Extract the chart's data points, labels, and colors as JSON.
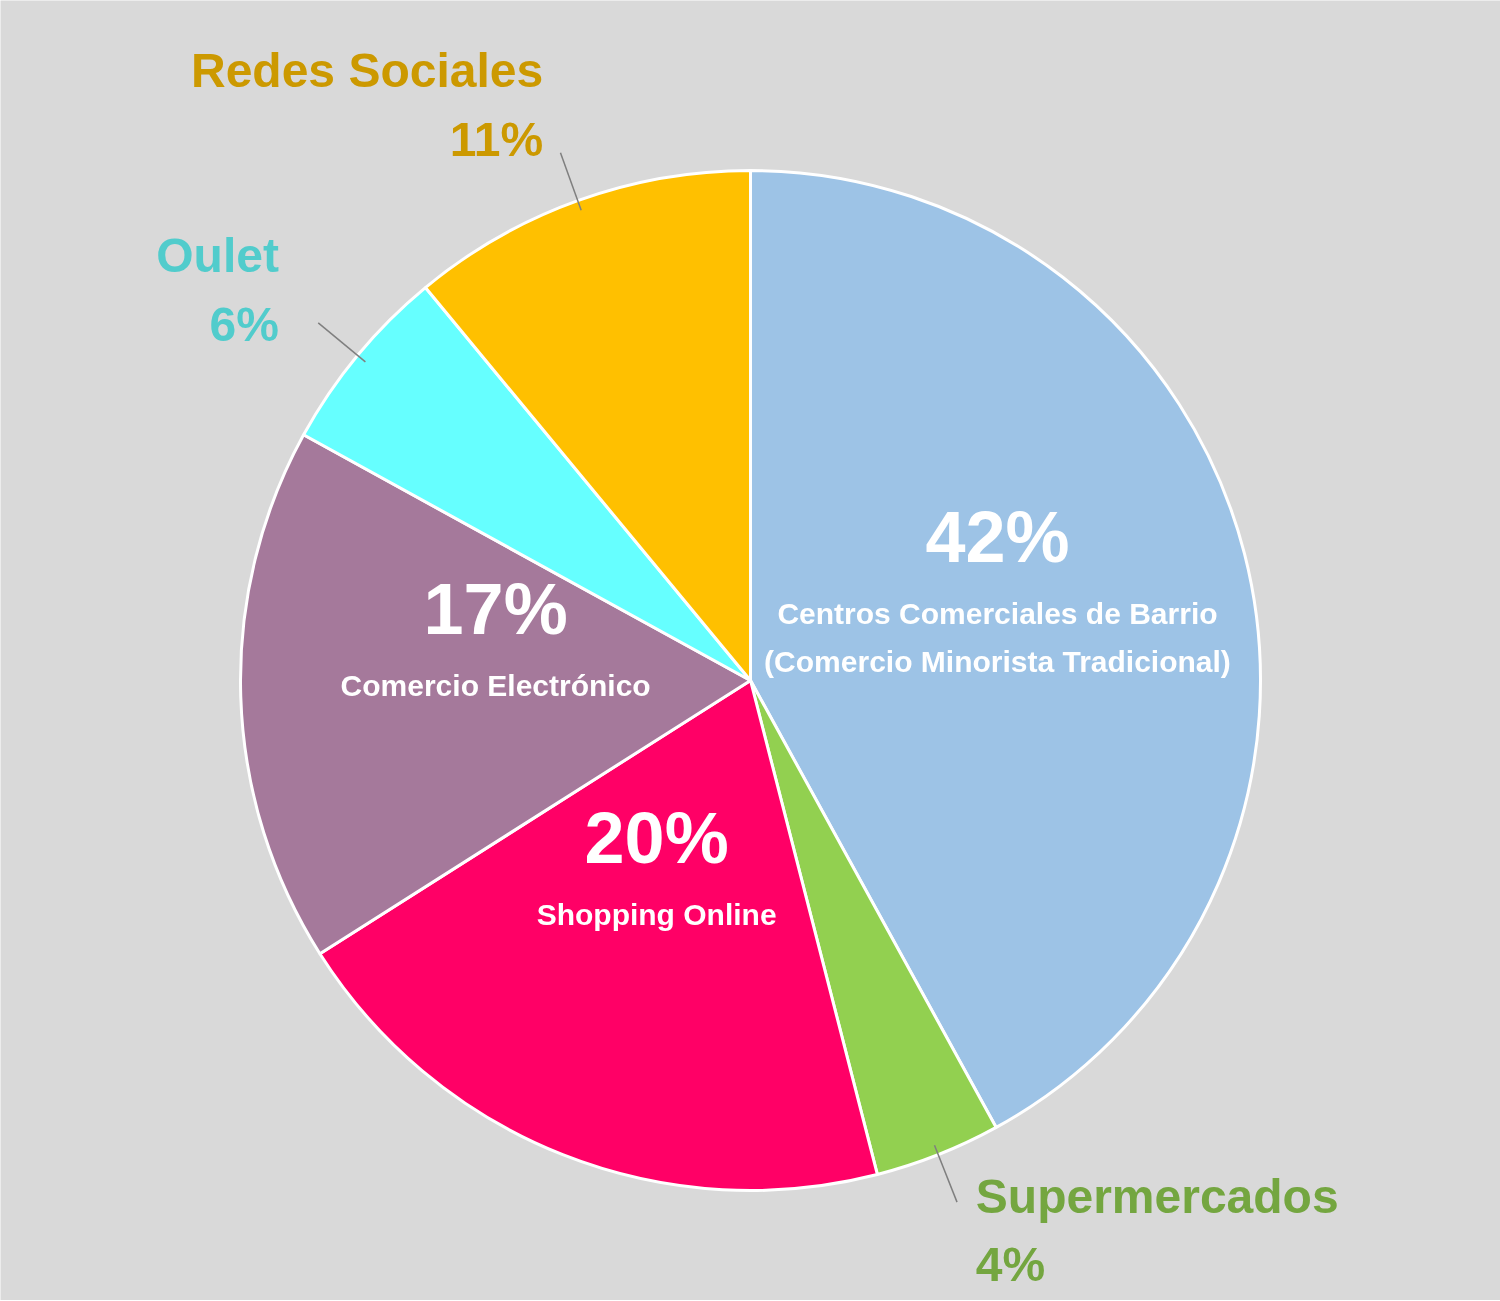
{
  "chart_data": {
    "type": "pie",
    "categories": [
      "Centros Comerciales de Barrio (Comercio Minorista Tradicional)",
      "Supermercados",
      "Shopping Online",
      "Comercio Electrónico",
      "Oulet",
      "Redes Sociales"
    ],
    "values": [
      42,
      4,
      20,
      17,
      6,
      11
    ],
    "value_labels": [
      "42%",
      "4%",
      "20%",
      "17%",
      "6%",
      "11%"
    ],
    "colors": [
      "#9dc3e6",
      "#92d050",
      "#ff0066",
      "#a5799b",
      "#66ffff",
      "#ffc000"
    ]
  }
}
